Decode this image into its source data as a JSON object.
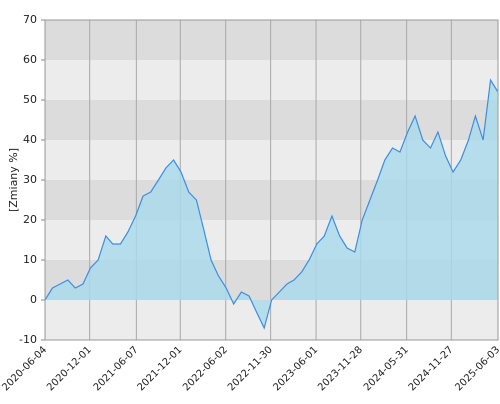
{
  "chart_data": {
    "type": "area",
    "y_label": "[Zmiany %]",
    "x": [
      "2020-06-04",
      "2020-07-04",
      "2020-08-04",
      "2020-09-04",
      "2020-10-04",
      "2020-11-04",
      "2020-12-04",
      "2021-01-04",
      "2021-02-04",
      "2021-03-04",
      "2021-04-04",
      "2021-05-04",
      "2021-06-04",
      "2021-07-04",
      "2021-08-04",
      "2021-09-04",
      "2021-10-04",
      "2021-11-04",
      "2021-12-04",
      "2022-01-04",
      "2022-02-04",
      "2022-03-04",
      "2022-04-04",
      "2022-05-04",
      "2022-06-04",
      "2022-07-04",
      "2022-08-04",
      "2022-09-04",
      "2022-10-04",
      "2022-11-04",
      "2022-12-04",
      "2023-01-04",
      "2023-02-04",
      "2023-03-04",
      "2023-04-04",
      "2023-05-04",
      "2023-06-04",
      "2023-07-04",
      "2023-08-04",
      "2023-09-04",
      "2023-10-04",
      "2023-11-04",
      "2023-12-04",
      "2024-01-04",
      "2024-02-04",
      "2024-03-04",
      "2024-04-04",
      "2024-05-04",
      "2024-06-04",
      "2024-07-04",
      "2024-08-04",
      "2024-09-04",
      "2024-10-04",
      "2024-11-04",
      "2024-12-04",
      "2025-01-04",
      "2025-02-04",
      "2025-03-04",
      "2025-04-04",
      "2025-05-04",
      "2025-06-03"
    ],
    "series": [
      {
        "color": "#3b8fe0",
        "fill": "#a9d9ec",
        "values": [
          0,
          3,
          4,
          5,
          3,
          4,
          8,
          10,
          16,
          14,
          14,
          17,
          21,
          26,
          27,
          30,
          33,
          35,
          32,
          27,
          25,
          18,
          10,
          6,
          3,
          -1,
          2,
          1,
          -3,
          -7,
          0,
          2,
          4,
          5,
          7,
          10,
          14,
          16,
          21,
          16,
          13,
          12,
          20,
          25,
          30,
          35,
          38,
          37,
          42,
          46,
          40,
          38,
          42,
          36,
          32,
          35,
          40,
          46,
          40,
          55,
          52
        ]
      }
    ],
    "xlim": [
      "2020-06-04",
      "2025-06-03"
    ],
    "xticks": [
      "2020-06-04",
      "2020-12-01",
      "2021-06-07",
      "2021-12-01",
      "2022-06-02",
      "2022-11-30",
      "2023-06-01",
      "2023-11-28",
      "2024-05-31",
      "2024-11-27",
      "2025-06-03"
    ],
    "ylim": [
      -10,
      70
    ],
    "yticks": [
      -10,
      0,
      10,
      20,
      30,
      40,
      50,
      60,
      70
    ],
    "band_colors": [
      "#ececec",
      "#dcdcdc"
    ],
    "grid": true
  }
}
